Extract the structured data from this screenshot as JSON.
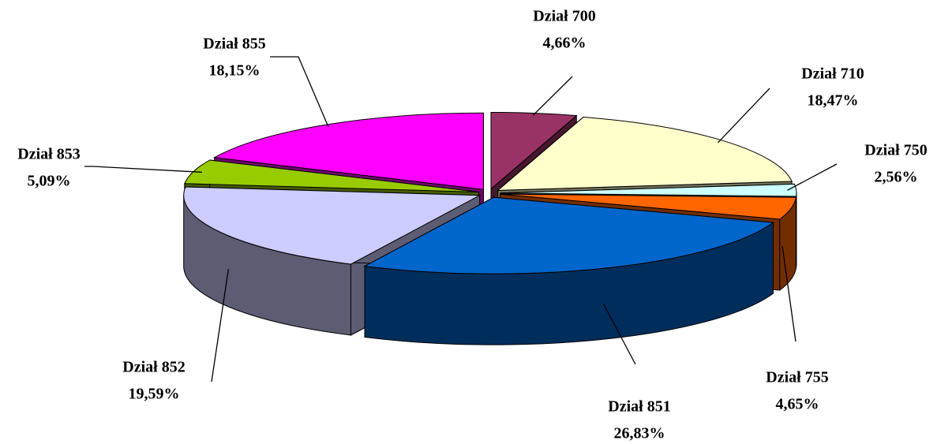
{
  "chart_data": {
    "type": "pie",
    "categories": [
      "Dział 700",
      "Dział 710",
      "Dział 750",
      "Dział 755",
      "Dział 851",
      "Dział 852",
      "Dział 853",
      "Dział 855"
    ],
    "values": [
      4.66,
      18.47,
      2.56,
      4.65,
      26.83,
      19.59,
      5.09,
      18.15
    ],
    "value_labels": [
      "4,66%",
      "18,47%",
      "2,56%",
      "4,65%",
      "26,83%",
      "19,59%",
      "5,09%",
      "18,15%"
    ],
    "colors": [
      "#993366",
      "#FFFFCC",
      "#CCFFFF",
      "#FF6600",
      "#0066CC",
      "#CCCCFF",
      "#99CC00",
      "#FF00FF"
    ]
  }
}
